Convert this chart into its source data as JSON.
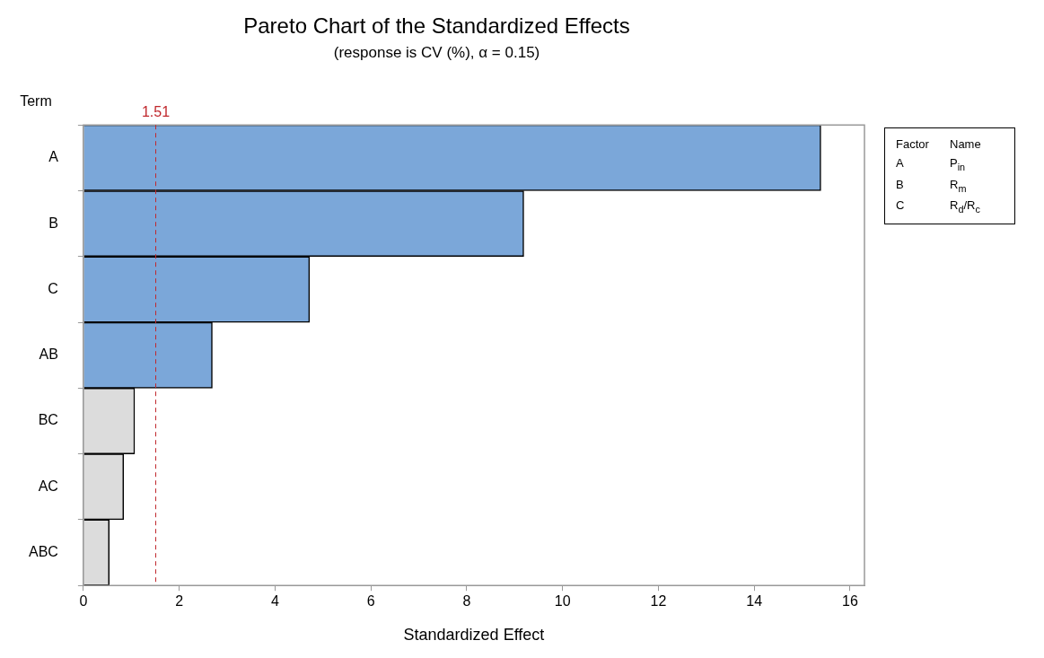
{
  "chart_data": {
    "type": "bar",
    "orientation": "horizontal",
    "title": "Pareto Chart of the Standardized Effects",
    "subtitle": "(response is CV (%), α = 0.15)",
    "xlabel": "Standardized Effect",
    "ylabel": "Term",
    "categories": [
      "A",
      "B",
      "C",
      "AB",
      "BC",
      "AC",
      "ABC"
    ],
    "values": [
      15.39,
      9.19,
      4.72,
      2.69,
      1.07,
      0.84,
      0.54
    ],
    "colors": [
      "#7ba7d9",
      "#7ba7d9",
      "#7ba7d9",
      "#7ba7d9",
      "#dcdcdc",
      "#dcdcdc",
      "#dcdcdc"
    ],
    "xlim": [
      0,
      16.3
    ],
    "xticks": [
      0,
      2,
      4,
      6,
      8,
      10,
      12,
      14,
      16
    ],
    "ref_lines": [
      {
        "axis": "x",
        "value": 1.51,
        "label": "1.51",
        "color": "#c0282d",
        "line_style": "dashed"
      }
    ],
    "annotations": [
      "Factor",
      "Name",
      "A",
      "P$_{in}$",
      "B",
      "R$_{m}$",
      "C",
      "R$_{d}$/R$_{c}$"
    ]
  }
}
